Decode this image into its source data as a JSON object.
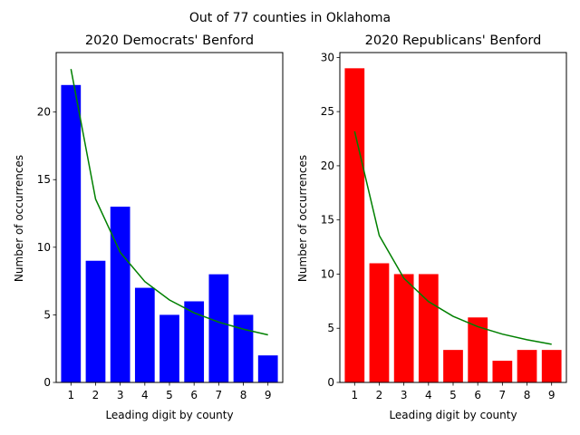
{
  "figure": {
    "suptitle": "Out of 77 counties in Oklahoma"
  },
  "chart_data": [
    {
      "type": "bar",
      "title": "2020 Democrats' Benford",
      "xlabel": "Leading digit by county",
      "ylabel": "Number of occurrences",
      "categories": [
        "1",
        "2",
        "3",
        "4",
        "5",
        "6",
        "7",
        "8",
        "9"
      ],
      "values": [
        22,
        9,
        13,
        7,
        5,
        6,
        8,
        5,
        2
      ],
      "bar_color": "#0000ff",
      "benford_expected": [
        23.18,
        13.56,
        9.62,
        7.46,
        6.1,
        5.15,
        4.46,
        3.94,
        3.52
      ],
      "line_color": "#008000",
      "ylim": [
        0,
        24.4
      ],
      "yticks": [
        0,
        5,
        10,
        15,
        20
      ],
      "grid": false
    },
    {
      "type": "bar",
      "title": "2020 Republicans' Benford",
      "xlabel": "Leading digit by county",
      "ylabel": "Number of occurrences",
      "categories": [
        "1",
        "2",
        "3",
        "4",
        "5",
        "6",
        "7",
        "8",
        "9"
      ],
      "values": [
        29,
        11,
        10,
        10,
        3,
        6,
        2,
        3,
        3
      ],
      "bar_color": "#ff0000",
      "benford_expected": [
        23.18,
        13.56,
        9.62,
        7.46,
        6.1,
        5.15,
        4.46,
        3.94,
        3.52
      ],
      "line_color": "#008000",
      "ylim": [
        0,
        30.45
      ],
      "yticks": [
        0,
        5,
        10,
        15,
        20,
        25,
        30
      ],
      "grid": false
    }
  ]
}
